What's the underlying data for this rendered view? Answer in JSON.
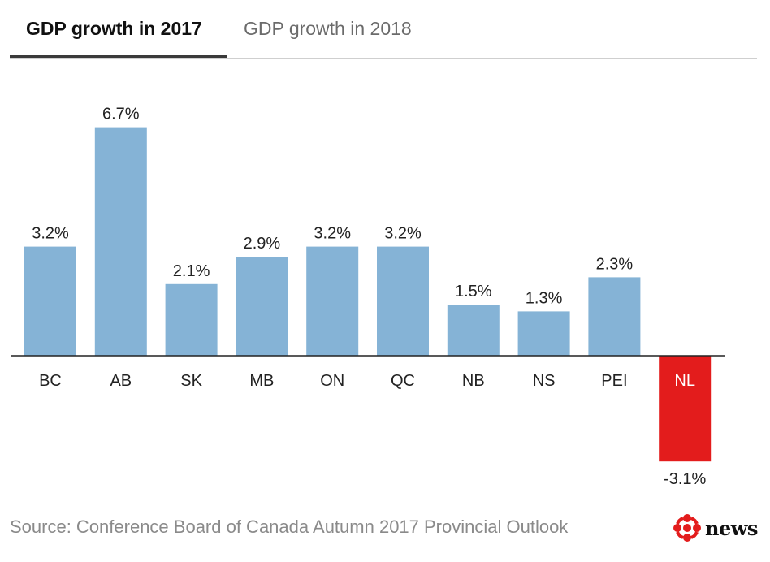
{
  "tabs": [
    {
      "label": "GDP growth in 2017",
      "active": true
    },
    {
      "label": "GDP growth in 2018",
      "active": false
    }
  ],
  "chart_data": {
    "type": "bar",
    "categories": [
      "BC",
      "AB",
      "SK",
      "MB",
      "ON",
      "QC",
      "NB",
      "NS",
      "PEI",
      "NL"
    ],
    "values": [
      3.2,
      6.7,
      2.1,
      2.9,
      3.2,
      3.2,
      1.5,
      1.3,
      2.3,
      -3.1
    ],
    "value_labels": [
      "3.2%",
      "6.7%",
      "2.1%",
      "2.9%",
      "3.2%",
      "3.2%",
      "1.5%",
      "1.3%",
      "2.3%",
      "-3.1%"
    ],
    "ylim": [
      -3.1,
      6.7
    ],
    "grid": false,
    "colors": {
      "positive": "#85b3d6",
      "negative": "#e31c1c",
      "negative_label": "#ffffff",
      "axis": "#222222"
    }
  },
  "source": "Source: Conference Board of Canada Autumn 2017 Provincial Outlook",
  "logo": {
    "icon": "cbc-gem-icon",
    "text": "news",
    "colors": [
      "#e31c1c",
      "#111111"
    ]
  }
}
